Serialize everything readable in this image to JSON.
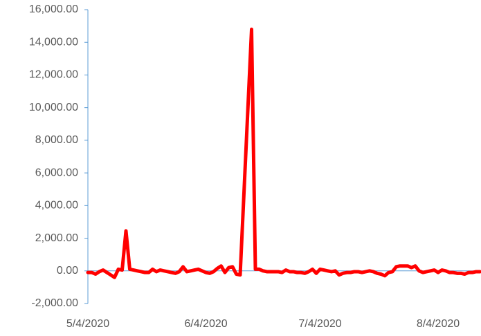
{
  "chart_data": {
    "type": "line",
    "x": [
      "2020-05-04",
      "2020-05-05",
      "2020-05-06",
      "2020-05-07",
      "2020-05-08",
      "2020-05-09",
      "2020-05-10",
      "2020-05-11",
      "2020-05-12",
      "2020-05-13",
      "2020-05-14",
      "2020-05-15",
      "2020-05-16",
      "2020-05-17",
      "2020-05-18",
      "2020-05-19",
      "2020-05-20",
      "2020-05-21",
      "2020-05-22",
      "2020-05-23",
      "2020-05-24",
      "2020-05-25",
      "2020-05-26",
      "2020-05-27",
      "2020-05-28",
      "2020-05-29",
      "2020-05-30",
      "2020-05-31",
      "2020-06-01",
      "2020-06-02",
      "2020-06-03",
      "2020-06-04",
      "2020-06-05",
      "2020-06-06",
      "2020-06-07",
      "2020-06-08",
      "2020-06-09",
      "2020-06-10",
      "2020-06-11",
      "2020-06-12",
      "2020-06-13",
      "2020-06-16",
      "2020-06-17",
      "2020-06-18",
      "2020-06-19",
      "2020-06-20",
      "2020-06-21",
      "2020-06-22",
      "2020-06-23",
      "2020-06-24",
      "2020-06-25",
      "2020-06-26",
      "2020-06-27",
      "2020-06-28",
      "2020-06-29",
      "2020-06-30",
      "2020-07-01",
      "2020-07-02",
      "2020-07-03",
      "2020-07-04",
      "2020-07-05",
      "2020-07-06",
      "2020-07-07",
      "2020-07-08",
      "2020-07-09",
      "2020-07-10",
      "2020-07-11",
      "2020-07-12",
      "2020-07-13",
      "2020-07-14",
      "2020-07-15",
      "2020-07-16",
      "2020-07-17",
      "2020-07-18",
      "2020-07-19",
      "2020-07-20",
      "2020-07-21",
      "2020-07-22",
      "2020-07-23",
      "2020-07-24",
      "2020-07-25",
      "2020-07-26",
      "2020-07-27",
      "2020-07-28",
      "2020-07-29",
      "2020-07-30",
      "2020-07-31",
      "2020-08-01",
      "2020-08-02",
      "2020-08-03",
      "2020-08-04",
      "2020-08-05",
      "2020-08-06",
      "2020-08-07",
      "2020-08-08",
      "2020-08-09",
      "2020-08-10",
      "2020-08-11",
      "2020-08-12",
      "2020-08-13",
      "2020-08-14",
      "2020-08-15"
    ],
    "series": [
      {
        "color": "#ff0000",
        "values": [
          -100,
          -100,
          -200,
          -50,
          50,
          -100,
          -250,
          -400,
          100,
          50,
          2450,
          100,
          50,
          0,
          -50,
          -100,
          -100,
          100,
          -50,
          50,
          0,
          -50,
          -100,
          -150,
          -50,
          250,
          -50,
          0,
          50,
          100,
          0,
          -100,
          -150,
          -50,
          150,
          300,
          -100,
          200,
          250,
          -200,
          -250,
          14800,
          100,
          100,
          0,
          -50,
          -50,
          -50,
          -50,
          -100,
          50,
          -50,
          -50,
          -100,
          -100,
          -150,
          -50,
          100,
          -150,
          100,
          50,
          0,
          -50,
          0,
          -250,
          -150,
          -100,
          -100,
          -50,
          -50,
          -100,
          -50,
          0,
          -50,
          -150,
          -200,
          -300,
          -100,
          -50,
          250,
          300,
          300,
          300,
          200,
          300,
          0,
          -100,
          -50,
          0,
          50,
          -100,
          50,
          0,
          -100,
          -100,
          -150,
          -150,
          -200,
          -100,
          -100,
          -50,
          -50
        ]
      }
    ],
    "xlim": [
      "2020-05-04",
      "2020-08-15"
    ],
    "xticks": [
      {
        "value": "2020-05-04",
        "label": "5/4/2020"
      },
      {
        "value": "2020-06-04",
        "label": "6/4/2020"
      },
      {
        "value": "2020-07-04",
        "label": "7/4/2020"
      },
      {
        "value": "2020-08-04",
        "label": "8/4/2020"
      }
    ],
    "ylim": [
      -2000,
      16000
    ],
    "yticks": [
      {
        "value": -2000,
        "label": "-2,000.00"
      },
      {
        "value": 0,
        "label": "0.00"
      },
      {
        "value": 2000,
        "label": "2,000.00"
      },
      {
        "value": 4000,
        "label": "4,000.00"
      },
      {
        "value": 6000,
        "label": "6,000.00"
      },
      {
        "value": 8000,
        "label": "8,000.00"
      },
      {
        "value": 10000,
        "label": "10,000.00"
      },
      {
        "value": 12000,
        "label": "12,000.00"
      },
      {
        "value": 14000,
        "label": "14,000.00"
      },
      {
        "value": 16000,
        "label": "16,000.00"
      }
    ]
  }
}
